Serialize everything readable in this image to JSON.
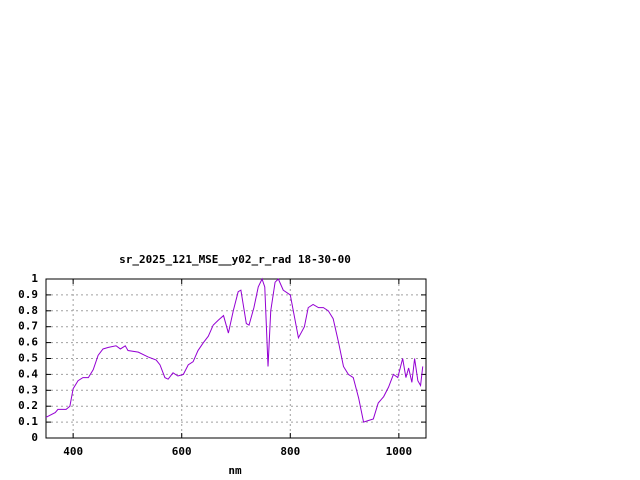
{
  "chart_data": {
    "type": "line",
    "title": "sr_2025_121_MSE__y02_r_rad 18-30-00",
    "x_label": "nm",
    "grid": true,
    "xlim": [
      350,
      1050
    ],
    "ylim": [
      0,
      1
    ],
    "xticks": [
      400,
      600,
      800,
      1000
    ],
    "yticks": [
      0,
      0.1,
      0.2,
      0.3,
      0.4,
      0.5,
      0.6,
      0.7,
      0.8,
      0.9,
      1
    ],
    "x": [
      350,
      367,
      372,
      387,
      394,
      400,
      409,
      418,
      428,
      437,
      446,
      455,
      465,
      479,
      487,
      496,
      501,
      520,
      538,
      553,
      560,
      569,
      575,
      584,
      593,
      603,
      612,
      621,
      630,
      640,
      649,
      658,
      667,
      677,
      686,
      695,
      704,
      709,
      719,
      724,
      733,
      741,
      748,
      753,
      759,
      764,
      772,
      778,
      787,
      800,
      815,
      826,
      833,
      842,
      852,
      861,
      870,
      879,
      889,
      898,
      907,
      916,
      926,
      935,
      944,
      953,
      962,
      972,
      981,
      990,
      998,
      1007,
      1013,
      1018,
      1024,
      1029,
      1035,
      1040,
      1044
    ],
    "series": [
      {
        "name": "sr_2025_121_MSE__y02_r_rad",
        "color": "#9400d3",
        "values": [
          0.13,
          0.16,
          0.18,
          0.18,
          0.2,
          0.31,
          0.36,
          0.38,
          0.38,
          0.43,
          0.52,
          0.56,
          0.57,
          0.58,
          0.56,
          0.58,
          0.55,
          0.54,
          0.51,
          0.49,
          0.46,
          0.38,
          0.37,
          0.41,
          0.39,
          0.4,
          0.46,
          0.48,
          0.55,
          0.6,
          0.64,
          0.71,
          0.74,
          0.77,
          0.66,
          0.8,
          0.92,
          0.93,
          0.72,
          0.71,
          0.82,
          0.95,
          1.0,
          0.95,
          0.45,
          0.8,
          0.98,
          1.0,
          0.93,
          0.9,
          0.63,
          0.7,
          0.82,
          0.84,
          0.82,
          0.82,
          0.8,
          0.75,
          0.6,
          0.45,
          0.4,
          0.38,
          0.25,
          0.1,
          0.11,
          0.12,
          0.22,
          0.26,
          0.32,
          0.4,
          0.38,
          0.5,
          0.38,
          0.44,
          0.35,
          0.5,
          0.36,
          0.33,
          0.45
        ]
      }
    ]
  }
}
